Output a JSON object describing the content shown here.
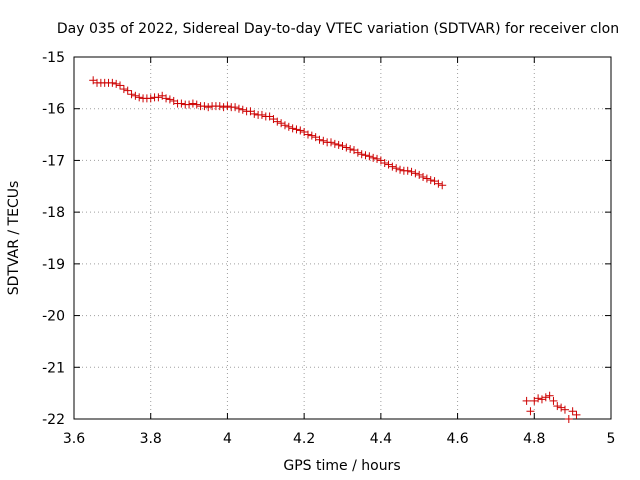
{
  "chart_data": {
    "type": "scatter",
    "title": "Day 035 of 2022, Sidereal Day-to-day VTEC variation (SDTVAR) for receiver clon",
    "xlabel": "GPS time / hours",
    "ylabel": "SDTVAR / TECUs",
    "xlim": [
      3.6,
      5.0
    ],
    "ylim": [
      -22,
      -15
    ],
    "xticks": [
      3.6,
      3.8,
      4.0,
      4.2,
      4.4,
      4.6,
      4.8,
      5.0
    ],
    "xtick_labels": [
      "3.6",
      "3.8",
      "4",
      "4.2",
      "4.4",
      "4.6",
      "4.8",
      "5"
    ],
    "yticks": [
      -22,
      -21,
      -20,
      -19,
      -18,
      -17,
      -16,
      -15
    ],
    "ytick_labels": [
      "-22",
      "-21",
      "-20",
      "-19",
      "-18",
      "-17",
      "-16",
      "-15"
    ],
    "grid": true,
    "marker": "+",
    "marker_color": "#cc0000",
    "series": [
      {
        "name": "SDTVAR",
        "x": [
          3.65,
          3.66,
          3.67,
          3.68,
          3.69,
          3.7,
          3.71,
          3.72,
          3.73,
          3.74,
          3.75,
          3.76,
          3.77,
          3.78,
          3.79,
          3.8,
          3.81,
          3.82,
          3.83,
          3.84,
          3.85,
          3.86,
          3.87,
          3.88,
          3.89,
          3.9,
          3.91,
          3.92,
          3.93,
          3.94,
          3.95,
          3.96,
          3.97,
          3.98,
          3.99,
          4.0,
          4.01,
          4.02,
          4.03,
          4.04,
          4.05,
          4.06,
          4.07,
          4.08,
          4.09,
          4.1,
          4.11,
          4.12,
          4.13,
          4.14,
          4.15,
          4.16,
          4.17,
          4.18,
          4.19,
          4.2,
          4.21,
          4.22,
          4.23,
          4.24,
          4.25,
          4.26,
          4.27,
          4.28,
          4.29,
          4.3,
          4.31,
          4.32,
          4.33,
          4.34,
          4.35,
          4.36,
          4.37,
          4.38,
          4.39,
          4.4,
          4.41,
          4.42,
          4.43,
          4.44,
          4.45,
          4.46,
          4.47,
          4.48,
          4.49,
          4.5,
          4.51,
          4.52,
          4.53,
          4.54,
          4.55,
          4.56,
          4.78,
          4.79,
          4.8,
          4.81,
          4.82,
          4.83,
          4.84,
          4.85,
          4.86,
          4.87,
          4.88,
          4.89,
          4.9,
          4.91
        ],
        "y": [
          -15.45,
          -15.5,
          -15.5,
          -15.5,
          -15.5,
          -15.5,
          -15.52,
          -15.55,
          -15.62,
          -15.65,
          -15.72,
          -15.75,
          -15.78,
          -15.8,
          -15.8,
          -15.8,
          -15.78,
          -15.78,
          -15.75,
          -15.8,
          -15.82,
          -15.85,
          -15.9,
          -15.9,
          -15.92,
          -15.92,
          -15.9,
          -15.92,
          -15.95,
          -15.95,
          -15.97,
          -15.95,
          -15.95,
          -15.95,
          -15.97,
          -15.95,
          -15.97,
          -15.97,
          -16.0,
          -16.02,
          -16.05,
          -16.05,
          -16.1,
          -16.12,
          -16.12,
          -16.15,
          -16.15,
          -16.2,
          -16.25,
          -16.28,
          -16.32,
          -16.35,
          -16.38,
          -16.4,
          -16.42,
          -16.45,
          -16.5,
          -16.52,
          -16.55,
          -16.6,
          -16.62,
          -16.65,
          -16.65,
          -16.68,
          -16.7,
          -16.72,
          -16.75,
          -16.78,
          -16.8,
          -16.85,
          -16.88,
          -16.9,
          -16.92,
          -16.95,
          -16.97,
          -17.0,
          -17.05,
          -17.08,
          -17.12,
          -17.15,
          -17.18,
          -17.2,
          -17.2,
          -17.22,
          -17.25,
          -17.28,
          -17.32,
          -17.35,
          -17.38,
          -17.4,
          -17.45,
          -17.48,
          -21.65,
          -21.85,
          -21.65,
          -21.6,
          -21.62,
          -21.58,
          -21.55,
          -21.65,
          -21.75,
          -21.78,
          -21.82,
          -22.0,
          -21.85,
          -21.92
        ]
      }
    ]
  }
}
